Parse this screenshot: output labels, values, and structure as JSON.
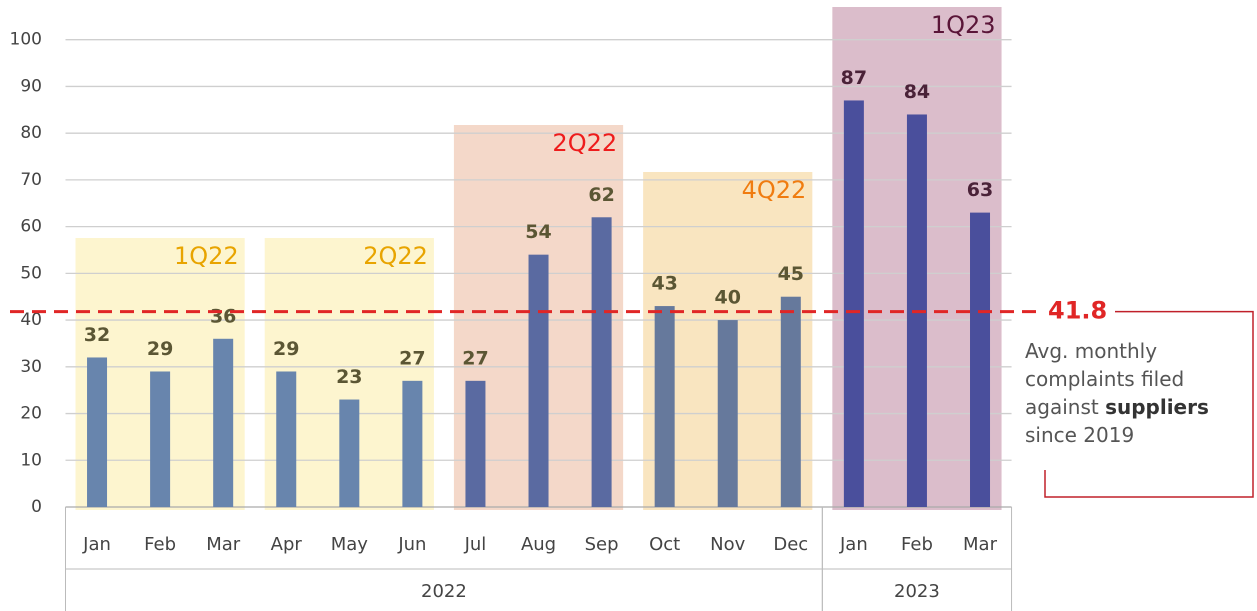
{
  "chart_data": {
    "type": "bar",
    "ylim": [
      0,
      107
    ],
    "yticks": [
      0,
      10,
      20,
      30,
      40,
      50,
      60,
      70,
      80,
      90,
      100
    ],
    "grid": true,
    "groups": [
      {
        "name": "2022",
        "value_label_color": "#5b5634",
        "quarters": [
          {
            "label": "1Q22",
            "label_color": "#e8a400",
            "fill": "#fdf5cf",
            "color": "#6885ad",
            "categories": [
              "Jan",
              "Feb",
              "Mar"
            ],
            "values": [
              32,
              29,
              36
            ]
          },
          {
            "label": "2Q22",
            "label_color": "#e8a400",
            "fill": "#fdf5cf",
            "color": "#6885ad",
            "categories": [
              "Apr",
              "May",
              "Jun"
            ],
            "values": [
              29,
              23,
              27
            ]
          },
          {
            "label": "2Q22",
            "label_color": "#ee1c1c",
            "fill": "#f4d8c9",
            "color": "#5a6aa1",
            "categories": [
              "Jul",
              "Aug",
              "Sep"
            ],
            "values": [
              27,
              54,
              62
            ]
          },
          {
            "label": "4Q22",
            "label_color": "#f07c10",
            "fill": "#f9e5c0",
            "color": "#66799c",
            "categories": [
              "Oct",
              "Nov",
              "Dec"
            ],
            "values": [
              43,
              40,
              45
            ]
          }
        ]
      },
      {
        "name": "2023",
        "value_label_color": "#4a2238",
        "quarters": [
          {
            "label": "1Q23",
            "label_color": "#5a1538",
            "fill": "#dbbdcb",
            "color": "#4a4f9c",
            "categories": [
              "Jan",
              "Feb",
              "Mar"
            ],
            "values": [
              87,
              84,
              63
            ]
          }
        ]
      }
    ],
    "reference_line": {
      "value": 41.8,
      "color": "#e02626"
    },
    "annotation": [
      [
        {
          "text": "Avg. monthly"
        }
      ],
      [
        {
          "text": "complaints filed"
        }
      ],
      [
        {
          "text": "against "
        },
        {
          "text": "suppliers",
          "bold": true
        }
      ],
      [
        {
          "text": "since 2019"
        }
      ]
    ]
  }
}
